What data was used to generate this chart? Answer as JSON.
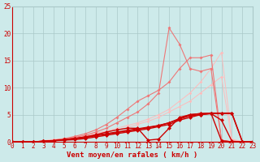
{
  "bg_color": "#cdeaea",
  "grid_color": "#aac8c8",
  "xlabel": "Vent moyen/en rafales ( km/h )",
  "xlabel_color": "#cc0000",
  "xlim": [
    0,
    23
  ],
  "ylim": [
    0,
    25
  ],
  "xticks": [
    0,
    1,
    2,
    3,
    4,
    5,
    6,
    7,
    8,
    9,
    10,
    11,
    12,
    13,
    14,
    15,
    16,
    17,
    18,
    19,
    20,
    21,
    22,
    23
  ],
  "yticks": [
    0,
    5,
    10,
    15,
    20,
    25
  ],
  "tick_fontsize": 5.5,
  "label_fontsize": 6.5,
  "series": [
    {
      "x": [
        0,
        1,
        2,
        3,
        4,
        5,
        6,
        7,
        8,
        9,
        10,
        11,
        12,
        13,
        14,
        15,
        16,
        17,
        18,
        19,
        20,
        21,
        22,
        23
      ],
      "y": [
        0,
        0,
        0,
        0.2,
        0.4,
        0.6,
        0.9,
        1.2,
        1.6,
        2.0,
        2.5,
        3.0,
        3.5,
        4.2,
        5.0,
        6.0,
        7.5,
        9.0,
        11.0,
        13.5,
        16.5,
        0.5,
        0.0,
        0.0
      ],
      "color": "#ffbbbb",
      "lw": 0.7,
      "ms": 1.8
    },
    {
      "x": [
        0,
        1,
        2,
        3,
        4,
        5,
        6,
        7,
        8,
        9,
        10,
        11,
        12,
        13,
        14,
        15,
        16,
        17,
        18,
        19,
        20,
        21,
        22,
        23
      ],
      "y": [
        0,
        0,
        0,
        0.2,
        0.4,
        0.6,
        0.8,
        1.0,
        1.4,
        1.8,
        2.2,
        2.6,
        3.2,
        3.8,
        4.5,
        5.5,
        6.5,
        7.5,
        9.0,
        10.5,
        12.0,
        0.3,
        0.0,
        0.0
      ],
      "color": "#ffbbbb",
      "lw": 0.7,
      "ms": 1.8
    },
    {
      "x": [
        0,
        1,
        2,
        3,
        4,
        5,
        6,
        7,
        8,
        9,
        10,
        11,
        12,
        13,
        14,
        15,
        16,
        17,
        18,
        19,
        20,
        21,
        22,
        23
      ],
      "y": [
        0,
        0,
        0,
        0.1,
        0.3,
        0.5,
        0.8,
        1.2,
        1.8,
        2.5,
        3.5,
        4.5,
        5.5,
        7.0,
        9.0,
        21.0,
        18.0,
        13.5,
        13.0,
        13.5,
        0.3,
        0.0,
        0.0,
        0.0
      ],
      "color": "#ee7777",
      "lw": 0.8,
      "ms": 2.0
    },
    {
      "x": [
        0,
        1,
        2,
        3,
        4,
        5,
        6,
        7,
        8,
        9,
        10,
        11,
        12,
        13,
        14,
        15,
        16,
        17,
        18,
        19,
        20,
        21,
        22,
        23
      ],
      "y": [
        0,
        0,
        0,
        0.1,
        0.3,
        0.6,
        1.0,
        1.5,
        2.2,
        3.2,
        4.5,
        6.0,
        7.5,
        8.5,
        9.5,
        11.0,
        13.5,
        15.5,
        15.5,
        16.0,
        0.3,
        0.0,
        0.0,
        0.0
      ],
      "color": "#ee7777",
      "lw": 0.8,
      "ms": 2.0
    },
    {
      "x": [
        0,
        1,
        2,
        3,
        4,
        5,
        6,
        7,
        8,
        9,
        10,
        11,
        12,
        13,
        14,
        15,
        16,
        17,
        18,
        19,
        20,
        21,
        22,
        23
      ],
      "y": [
        0,
        0,
        0,
        0.1,
        0.2,
        0.3,
        0.4,
        0.6,
        0.9,
        1.2,
        1.5,
        1.8,
        2.1,
        2.4,
        2.8,
        3.2,
        4.0,
        4.5,
        5.0,
        5.2,
        4.0,
        0.1,
        0.0,
        0.0
      ],
      "color": "#cc0000",
      "lw": 1.0,
      "ms": 2.5
    },
    {
      "x": [
        0,
        1,
        2,
        3,
        4,
        5,
        6,
        7,
        8,
        9,
        10,
        11,
        12,
        13,
        14,
        15,
        16,
        17,
        18,
        19,
        20,
        21,
        22,
        23
      ],
      "y": [
        0,
        0,
        0,
        0.1,
        0.2,
        0.4,
        0.6,
        0.9,
        1.2,
        1.5,
        1.8,
        2.1,
        2.4,
        2.7,
        3.0,
        3.5,
        4.2,
        4.8,
        5.0,
        5.2,
        5.2,
        5.2,
        0.0,
        0.0
      ],
      "color": "#cc0000",
      "lw": 1.0,
      "ms": 2.5
    },
    {
      "x": [
        0,
        1,
        2,
        3,
        4,
        5,
        6,
        7,
        8,
        9,
        10,
        11,
        12,
        13,
        14,
        15,
        16,
        17,
        18,
        19,
        20,
        21,
        22,
        23
      ],
      "y": [
        0,
        0,
        0,
        0.1,
        0.2,
        0.4,
        0.6,
        0.8,
        1.1,
        1.4,
        1.7,
        2.0,
        2.3,
        2.6,
        3.0,
        3.5,
        4.3,
        5.0,
        5.2,
        5.3,
        5.3,
        5.3,
        0.0,
        0.0
      ],
      "color": "#cc0000",
      "lw": 1.0,
      "ms": 2.5
    },
    {
      "x": [
        0,
        1,
        2,
        3,
        4,
        5,
        6,
        7,
        8,
        9,
        10,
        11,
        12,
        13,
        14,
        15,
        16,
        17,
        18,
        19,
        20,
        21,
        22,
        23
      ],
      "y": [
        0,
        0,
        0,
        0.1,
        0.2,
        0.4,
        0.6,
        0.9,
        1.3,
        1.8,
        2.2,
        2.5,
        2.5,
        0.3,
        0.5,
        2.5,
        4.5,
        5.0,
        5.2,
        5.3,
        0.2,
        0.0,
        0.0,
        0.0
      ],
      "color": "#cc0000",
      "lw": 1.0,
      "ms": 2.5
    }
  ]
}
